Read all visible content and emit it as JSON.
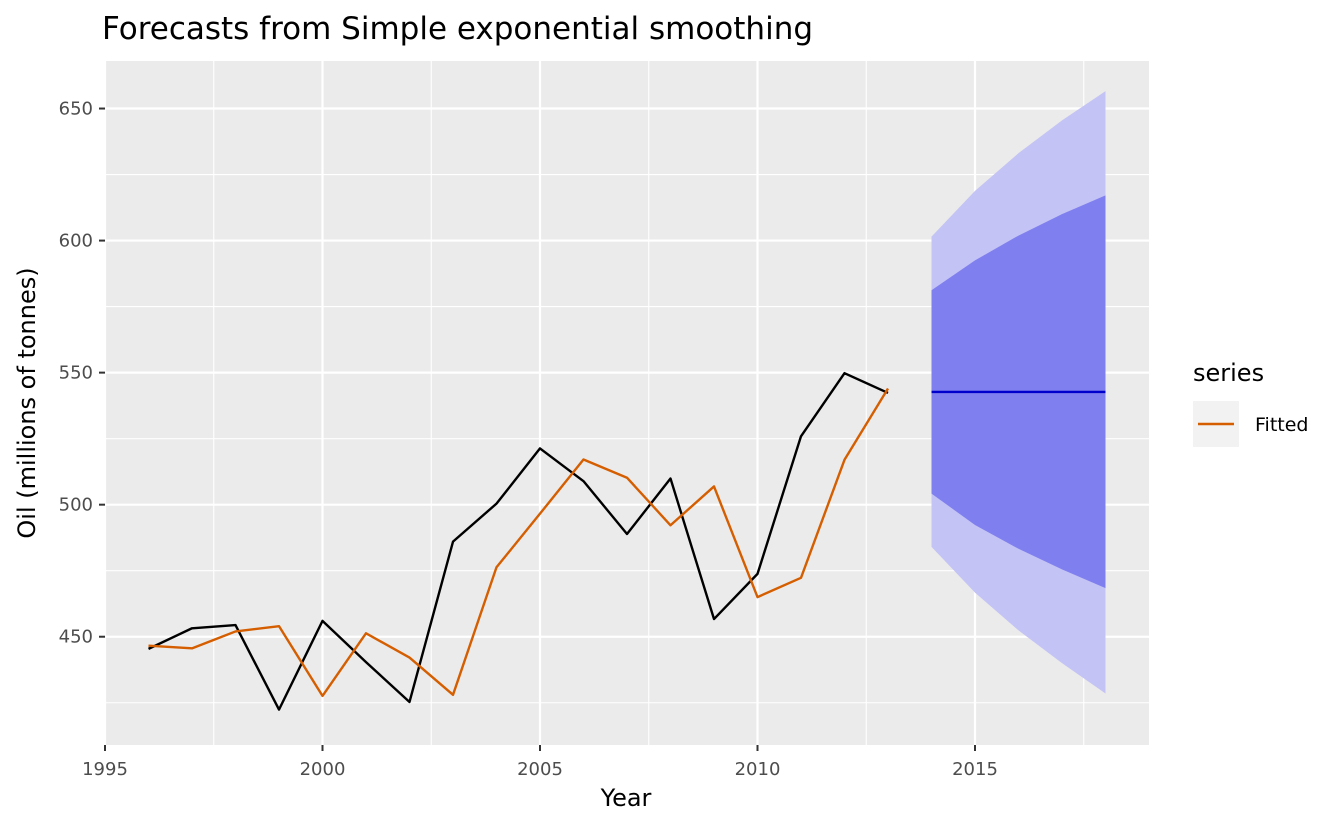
{
  "chart_data": {
    "type": "line",
    "title": "Forecasts from Simple exponential smoothing",
    "xlabel": "Year",
    "ylabel": "Oil (millions of tonnes)",
    "xlim": [
      1995,
      2019
    ],
    "ylim": [
      409,
      668
    ],
    "x_ticks": [
      1995,
      2000,
      2005,
      2010,
      2015
    ],
    "y_ticks": [
      450,
      500,
      550,
      600,
      650
    ],
    "grid": true,
    "legend": {
      "title": "series",
      "position": "right",
      "entries": [
        {
          "label": "Fitted",
          "color": "#D55E00"
        }
      ]
    },
    "series": [
      {
        "role": "observed",
        "color": "#000000",
        "x": [
          1996,
          1997,
          1998,
          1999,
          2000,
          2001,
          2002,
          2003,
          2004,
          2005,
          2006,
          2007,
          2008,
          2009,
          2010,
          2011,
          2012,
          2013
        ],
        "values": [
          445.4,
          453.2,
          454.4,
          422.4,
          456.0,
          440.4,
          425.3,
          486.0,
          500.4,
          521.3,
          508.9,
          488.9,
          509.9,
          456.7,
          473.8,
          525.9,
          549.8,
          542.3
        ]
      },
      {
        "name": "Fitted",
        "color": "#D55E00",
        "x": [
          1996,
          1997,
          1998,
          1999,
          2000,
          2001,
          2002,
          2003,
          2004,
          2005,
          2006,
          2007,
          2008,
          2009,
          2010,
          2011,
          2012,
          2013
        ],
        "values": [
          446.6,
          445.6,
          452.0,
          454.0,
          427.6,
          451.3,
          442.1,
          428.0,
          476.3,
          496.6,
          517.1,
          510.2,
          492.2,
          506.9,
          465.0,
          472.3,
          517.0,
          544.0
        ]
      }
    ],
    "forecast": {
      "color": "#0000CC",
      "x": [
        2014,
        2015,
        2016,
        2017,
        2018
      ],
      "mean": [
        542.7,
        542.7,
        542.7,
        542.7,
        542.7
      ],
      "pi80": {
        "color": "#7F7FEF",
        "lower": [
          504.2,
          492.3,
          483.3,
          475.5,
          468.4
        ],
        "upper": [
          581.2,
          592.5,
          601.9,
          610.0,
          617.1
        ]
      },
      "pi95": {
        "color": "#C3C3F5",
        "lower": [
          484.0,
          466.7,
          452.4,
          440.0,
          428.5
        ],
        "upper": [
          601.5,
          618.8,
          633.1,
          645.5,
          656.6
        ]
      }
    }
  }
}
